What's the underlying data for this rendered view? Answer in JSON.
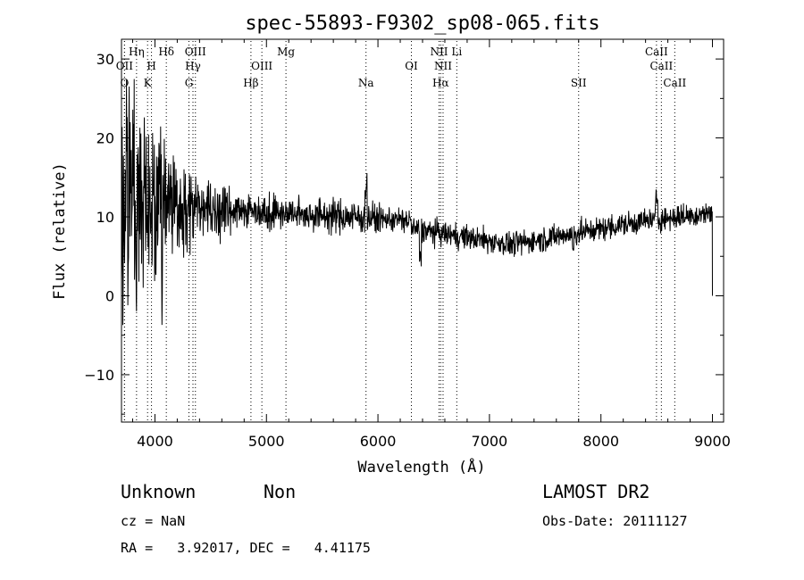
{
  "chart_data": {
    "type": "line",
    "title": "spec-55893-F9302_sp08-065.fits",
    "xlabel": "Wavelength (Å)",
    "ylabel": "Flux (relative)",
    "xlim": [
      3700,
      9100
    ],
    "ylim": [
      -16,
      32.5
    ],
    "x_ticks": [
      "4000",
      "5000",
      "6000",
      "7000",
      "8000",
      "9000"
    ],
    "y_ticks": [
      "−10",
      "0",
      "10",
      "20",
      "30"
    ],
    "spectral_lines": [
      {
        "label": "OII",
        "wavelength": 3727,
        "row": 1
      },
      {
        "label": "O",
        "wavelength": 3727,
        "row": 2
      },
      {
        "label": "Hη",
        "wavelength": 3835,
        "row": 0
      },
      {
        "label": "H",
        "wavelength": 3969,
        "row": 1
      },
      {
        "label": "K",
        "wavelength": 3934,
        "row": 2
      },
      {
        "label": "Hδ",
        "wavelength": 4102,
        "row": 0
      },
      {
        "label": "OIII",
        "wavelength": 4363,
        "row": 0
      },
      {
        "label": "Hγ",
        "wavelength": 4341,
        "row": 1
      },
      {
        "label": "G",
        "wavelength": 4305,
        "row": 2
      },
      {
        "label": "Hβ",
        "wavelength": 4861,
        "row": 2
      },
      {
        "label": "OIII",
        "wavelength": 4959,
        "row": 1
      },
      {
        "label": "Mg",
        "wavelength": 5175,
        "row": 0
      },
      {
        "label": "Na",
        "wavelength": 5893,
        "row": 2
      },
      {
        "label": "OI",
        "wavelength": 6300,
        "row": 1
      },
      {
        "label": "NII",
        "wavelength": 6548,
        "row": 0
      },
      {
        "label": "NII",
        "wavelength": 6584,
        "row": 1
      },
      {
        "label": "Li",
        "wavelength": 6707,
        "row": 0
      },
      {
        "label": "Hα",
        "wavelength": 6563,
        "row": 2
      },
      {
        "label": "SII",
        "wavelength": 7800,
        "row": 2
      },
      {
        "label": "CaII",
        "wavelength": 8498,
        "row": 0
      },
      {
        "label": "CaII",
        "wavelength": 8542,
        "row": 1
      },
      {
        "label": "CaII",
        "wavelength": 8662,
        "row": 2
      }
    ],
    "grid": false,
    "legend": "none"
  },
  "info": {
    "class": "Unknown",
    "subclass": "Non",
    "survey": "LAMOST DR2",
    "cz": "cz = NaN",
    "obs_date": "Obs-Date: 20111127",
    "coords": "RA =   3.92017, DEC =   4.41175"
  }
}
